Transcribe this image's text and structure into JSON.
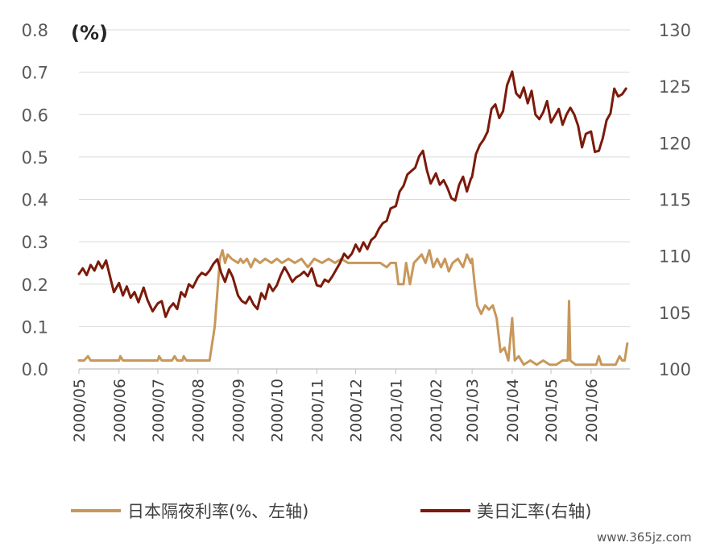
{
  "chart_data": {
    "type": "line",
    "unit_label": "(%)",
    "x_tick_labels": [
      "2000/05",
      "2000/06",
      "2000/07",
      "2000/08",
      "2000/09",
      "2000/10",
      "2000/11",
      "2000/12",
      "2001/01",
      "2001/02",
      "2001/03",
      "2001/04",
      "2001/05",
      "2001/06"
    ],
    "y_left": {
      "ticks": [
        "0.0",
        "0.1",
        "0.2",
        "0.3",
        "0.4",
        "0.5",
        "0.6",
        "0.7",
        "0.8"
      ],
      "range": [
        0,
        0.8
      ]
    },
    "y_right": {
      "ticks": [
        "100",
        "105",
        "110",
        "115",
        "120",
        "125",
        "130"
      ],
      "range": [
        100,
        130
      ]
    },
    "series": [
      {
        "name": "日本隔夜利率(%、左轴",
        "axis": "left",
        "color": "#C8975A",
        "points": [
          [
            "2000/05/01",
            0.02
          ],
          [
            "2000/05/05",
            0.02
          ],
          [
            "2000/05/08",
            0.03
          ],
          [
            "2000/05/10",
            0.02
          ],
          [
            "2000/06/01",
            0.02
          ],
          [
            "2000/06/02",
            0.03
          ],
          [
            "2000/06/04",
            0.02
          ],
          [
            "2000/07/01",
            0.02
          ],
          [
            "2000/07/02",
            0.03
          ],
          [
            "2000/07/04",
            0.02
          ],
          [
            "2000/07/12",
            0.02
          ],
          [
            "2000/07/14",
            0.03
          ],
          [
            "2000/07/16",
            0.02
          ],
          [
            "2000/07/20",
            0.02
          ],
          [
            "2000/07/21",
            0.03
          ],
          [
            "2000/07/23",
            0.02
          ],
          [
            "2000/08/10",
            0.02
          ],
          [
            "2000/08/14",
            0.1
          ],
          [
            "2000/08/16",
            0.18
          ],
          [
            "2000/08/18",
            0.26
          ],
          [
            "2000/08/20",
            0.28
          ],
          [
            "2000/08/22",
            0.25
          ],
          [
            "2000/08/24",
            0.27
          ],
          [
            "2000/08/27",
            0.26
          ],
          [
            "2000/09/01",
            0.25
          ],
          [
            "2000/09/03",
            0.26
          ],
          [
            "2000/09/05",
            0.25
          ],
          [
            "2000/09/08",
            0.26
          ],
          [
            "2000/09/11",
            0.24
          ],
          [
            "2000/09/14",
            0.26
          ],
          [
            "2000/09/18",
            0.25
          ],
          [
            "2000/09/22",
            0.26
          ],
          [
            "2000/09/27",
            0.25
          ],
          [
            "2000/10/01",
            0.26
          ],
          [
            "2000/10/05",
            0.25
          ],
          [
            "2000/10/10",
            0.26
          ],
          [
            "2000/10/15",
            0.25
          ],
          [
            "2000/10/20",
            0.26
          ],
          [
            "2000/10/25",
            0.24
          ],
          [
            "2000/10/30",
            0.26
          ],
          [
            "2000/11/05",
            0.25
          ],
          [
            "2000/11/10",
            0.26
          ],
          [
            "2000/11/15",
            0.25
          ],
          [
            "2000/11/20",
            0.26
          ],
          [
            "2000/11/25",
            0.25
          ],
          [
            "2000/12/01",
            0.25
          ],
          [
            "2000/12/10",
            0.25
          ],
          [
            "2000/12/20",
            0.25
          ],
          [
            "2000/12/25",
            0.24
          ],
          [
            "2000/12/28",
            0.25
          ],
          [
            "2001/01/01",
            0.25
          ],
          [
            "2001/01/03",
            0.2
          ],
          [
            "2001/01/07",
            0.2
          ],
          [
            "2001/01/09",
            0.25
          ],
          [
            "2001/01/12",
            0.2
          ],
          [
            "2001/01/15",
            0.25
          ],
          [
            "2001/01/18",
            0.26
          ],
          [
            "2001/01/21",
            0.27
          ],
          [
            "2001/01/24",
            0.25
          ],
          [
            "2001/01/27",
            0.28
          ],
          [
            "2001/01/30",
            0.24
          ],
          [
            "2001/02/02",
            0.26
          ],
          [
            "2001/02/05",
            0.24
          ],
          [
            "2001/02/08",
            0.26
          ],
          [
            "2001/02/11",
            0.23
          ],
          [
            "2001/02/14",
            0.25
          ],
          [
            "2001/02/18",
            0.26
          ],
          [
            "2001/02/22",
            0.24
          ],
          [
            "2001/02/25",
            0.27
          ],
          [
            "2001/02/28",
            0.25
          ],
          [
            "2001/03/01",
            0.26
          ],
          [
            "2001/03/03",
            0.2
          ],
          [
            "2001/03/05",
            0.15
          ],
          [
            "2001/03/08",
            0.13
          ],
          [
            "2001/03/11",
            0.15
          ],
          [
            "2001/03/14",
            0.14
          ],
          [
            "2001/03/17",
            0.15
          ],
          [
            "2001/03/20",
            0.12
          ],
          [
            "2001/03/23",
            0.04
          ],
          [
            "2001/03/26",
            0.05
          ],
          [
            "2001/03/29",
            0.02
          ],
          [
            "2001/04/01",
            0.12
          ],
          [
            "2001/04/03",
            0.02
          ],
          [
            "2001/04/06",
            0.03
          ],
          [
            "2001/04/10",
            0.01
          ],
          [
            "2001/04/15",
            0.02
          ],
          [
            "2001/04/20",
            0.01
          ],
          [
            "2001/04/25",
            0.02
          ],
          [
            "2001/04/30",
            0.01
          ],
          [
            "2001/05/05",
            0.01
          ],
          [
            "2001/05/10",
            0.02
          ],
          [
            "2001/05/14",
            0.02
          ],
          [
            "2001/05/15",
            0.16
          ],
          [
            "2001/05/16",
            0.02
          ],
          [
            "2001/05/20",
            0.01
          ],
          [
            "2001/06/05",
            0.01
          ],
          [
            "2001/06/07",
            0.03
          ],
          [
            "2001/06/09",
            0.01
          ],
          [
            "2001/06/20",
            0.01
          ],
          [
            "2001/06/23",
            0.03
          ],
          [
            "2001/06/25",
            0.02
          ],
          [
            "2001/06/27",
            0.02
          ],
          [
            "2001/06/29",
            0.06
          ]
        ]
      },
      {
        "name": "美日汇率(右轴",
        "axis": "right",
        "color": "#7B1A0A",
        "points": [
          [
            "2000/05/01",
            108.4
          ],
          [
            "2000/05/04",
            108.9
          ],
          [
            "2000/05/07",
            108.3
          ],
          [
            "2000/05/10",
            109.2
          ],
          [
            "2000/05/13",
            108.7
          ],
          [
            "2000/05/16",
            109.5
          ],
          [
            "2000/05/19",
            108.9
          ],
          [
            "2000/05/22",
            109.6
          ],
          [
            "2000/05/25",
            108.2
          ],
          [
            "2000/05/28",
            106.8
          ],
          [
            "2000/06/01",
            107.6
          ],
          [
            "2000/06/04",
            106.5
          ],
          [
            "2000/06/07",
            107.3
          ],
          [
            "2000/06/10",
            106.3
          ],
          [
            "2000/06/13",
            106.8
          ],
          [
            "2000/06/16",
            105.9
          ],
          [
            "2000/06/20",
            107.2
          ],
          [
            "2000/06/23",
            106.1
          ],
          [
            "2000/06/27",
            105.1
          ],
          [
            "2000/07/01",
            105.8
          ],
          [
            "2000/07/04",
            106.0
          ],
          [
            "2000/07/07",
            104.6
          ],
          [
            "2000/07/10",
            105.4
          ],
          [
            "2000/07/13",
            105.8
          ],
          [
            "2000/07/16",
            105.3
          ],
          [
            "2000/07/19",
            106.8
          ],
          [
            "2000/07/22",
            106.4
          ],
          [
            "2000/07/25",
            107.5
          ],
          [
            "2000/07/28",
            107.2
          ],
          [
            "2000/08/01",
            108.1
          ],
          [
            "2000/08/04",
            108.5
          ],
          [
            "2000/08/07",
            108.3
          ],
          [
            "2000/08/10",
            108.7
          ],
          [
            "2000/08/13",
            109.3
          ],
          [
            "2000/08/16",
            109.7
          ],
          [
            "2000/08/19",
            108.5
          ],
          [
            "2000/08/22",
            107.7
          ],
          [
            "2000/08/25",
            108.8
          ],
          [
            "2000/08/28",
            108.1
          ],
          [
            "2000/09/01",
            106.5
          ],
          [
            "2000/09/04",
            106.0
          ],
          [
            "2000/09/07",
            105.8
          ],
          [
            "2000/09/10",
            106.4
          ],
          [
            "2000/09/13",
            105.7
          ],
          [
            "2000/09/16",
            105.3
          ],
          [
            "2000/09/19",
            106.7
          ],
          [
            "2000/09/22",
            106.2
          ],
          [
            "2000/09/25",
            107.5
          ],
          [
            "2000/09/28",
            106.9
          ],
          [
            "2000/10/01",
            107.4
          ],
          [
            "2000/10/04",
            108.3
          ],
          [
            "2000/10/07",
            109.0
          ],
          [
            "2000/10/10",
            108.4
          ],
          [
            "2000/10/13",
            107.7
          ],
          [
            "2000/10/16",
            108.1
          ],
          [
            "2000/10/19",
            108.3
          ],
          [
            "2000/10/22",
            108.6
          ],
          [
            "2000/10/25",
            108.2
          ],
          [
            "2000/10/28",
            108.9
          ],
          [
            "2000/11/01",
            107.4
          ],
          [
            "2000/11/04",
            107.3
          ],
          [
            "2000/11/07",
            107.9
          ],
          [
            "2000/11/10",
            107.7
          ],
          [
            "2000/11/13",
            108.2
          ],
          [
            "2000/11/16",
            108.8
          ],
          [
            "2000/11/19",
            109.4
          ],
          [
            "2000/11/22",
            110.2
          ],
          [
            "2000/11/25",
            109.8
          ],
          [
            "2000/11/28",
            110.2
          ],
          [
            "2000/12/01",
            111.0
          ],
          [
            "2000/12/04",
            110.4
          ],
          [
            "2000/12/07",
            111.2
          ],
          [
            "2000/12/10",
            110.6
          ],
          [
            "2000/12/13",
            111.4
          ],
          [
            "2000/12/16",
            111.7
          ],
          [
            "2000/12/19",
            112.4
          ],
          [
            "2000/12/22",
            112.9
          ],
          [
            "2000/12/25",
            113.1
          ],
          [
            "2000/12/28",
            114.2
          ],
          [
            "2001/01/01",
            114.4
          ],
          [
            "2001/01/04",
            115.7
          ],
          [
            "2001/01/07",
            116.2
          ],
          [
            "2001/01/10",
            117.2
          ],
          [
            "2001/01/13",
            117.5
          ],
          [
            "2001/01/16",
            117.8
          ],
          [
            "2001/01/19",
            118.8
          ],
          [
            "2001/01/22",
            119.3
          ],
          [
            "2001/01/25",
            117.6
          ],
          [
            "2001/01/28",
            116.4
          ],
          [
            "2001/02/01",
            117.3
          ],
          [
            "2001/02/04",
            116.3
          ],
          [
            "2001/02/07",
            116.7
          ],
          [
            "2001/02/10",
            116.0
          ],
          [
            "2001/02/13",
            115.1
          ],
          [
            "2001/02/16",
            114.9
          ],
          [
            "2001/02/19",
            116.3
          ],
          [
            "2001/02/22",
            117.0
          ],
          [
            "2001/02/25",
            115.7
          ],
          [
            "2001/02/28",
            116.8
          ],
          [
            "2001/03/01",
            117.0
          ],
          [
            "2001/03/04",
            119.0
          ],
          [
            "2001/03/07",
            119.8
          ],
          [
            "2001/03/10",
            120.3
          ],
          [
            "2001/03/13",
            121.0
          ],
          [
            "2001/03/16",
            123.0
          ],
          [
            "2001/03/19",
            123.4
          ],
          [
            "2001/03/22",
            122.2
          ],
          [
            "2001/03/25",
            122.8
          ],
          [
            "2001/03/28",
            125.1
          ],
          [
            "2001/04/01",
            126.3
          ],
          [
            "2001/04/04",
            124.4
          ],
          [
            "2001/04/07",
            124.0
          ],
          [
            "2001/04/10",
            124.9
          ],
          [
            "2001/04/13",
            123.5
          ],
          [
            "2001/04/16",
            124.6
          ],
          [
            "2001/04/19",
            122.5
          ],
          [
            "2001/04/22",
            122.1
          ],
          [
            "2001/04/25",
            122.7
          ],
          [
            "2001/04/28",
            123.7
          ],
          [
            "2001/05/01",
            121.8
          ],
          [
            "2001/05/04",
            122.4
          ],
          [
            "2001/05/07",
            123.0
          ],
          [
            "2001/05/10",
            121.6
          ],
          [
            "2001/05/13",
            122.5
          ],
          [
            "2001/05/16",
            123.1
          ],
          [
            "2001/05/19",
            122.5
          ],
          [
            "2001/05/22",
            121.5
          ],
          [
            "2001/05/25",
            119.6
          ],
          [
            "2001/05/28",
            120.8
          ],
          [
            "2001/06/01",
            121.0
          ],
          [
            "2001/06/04",
            119.2
          ],
          [
            "2001/06/07",
            119.3
          ],
          [
            "2001/06/10",
            120.4
          ],
          [
            "2001/06/13",
            122.0
          ],
          [
            "2001/06/16",
            122.6
          ],
          [
            "2001/06/19",
            124.8
          ],
          [
            "2001/06/22",
            124.1
          ],
          [
            "2001/06/25",
            124.3
          ],
          [
            "2001/06/28",
            124.8
          ]
        ]
      }
    ],
    "x_range": [
      "2000/05/01",
      "2001/07/01"
    ],
    "grid": "horizontal",
    "legend_position": "bottom"
  },
  "watermark": "www.365jz.com"
}
